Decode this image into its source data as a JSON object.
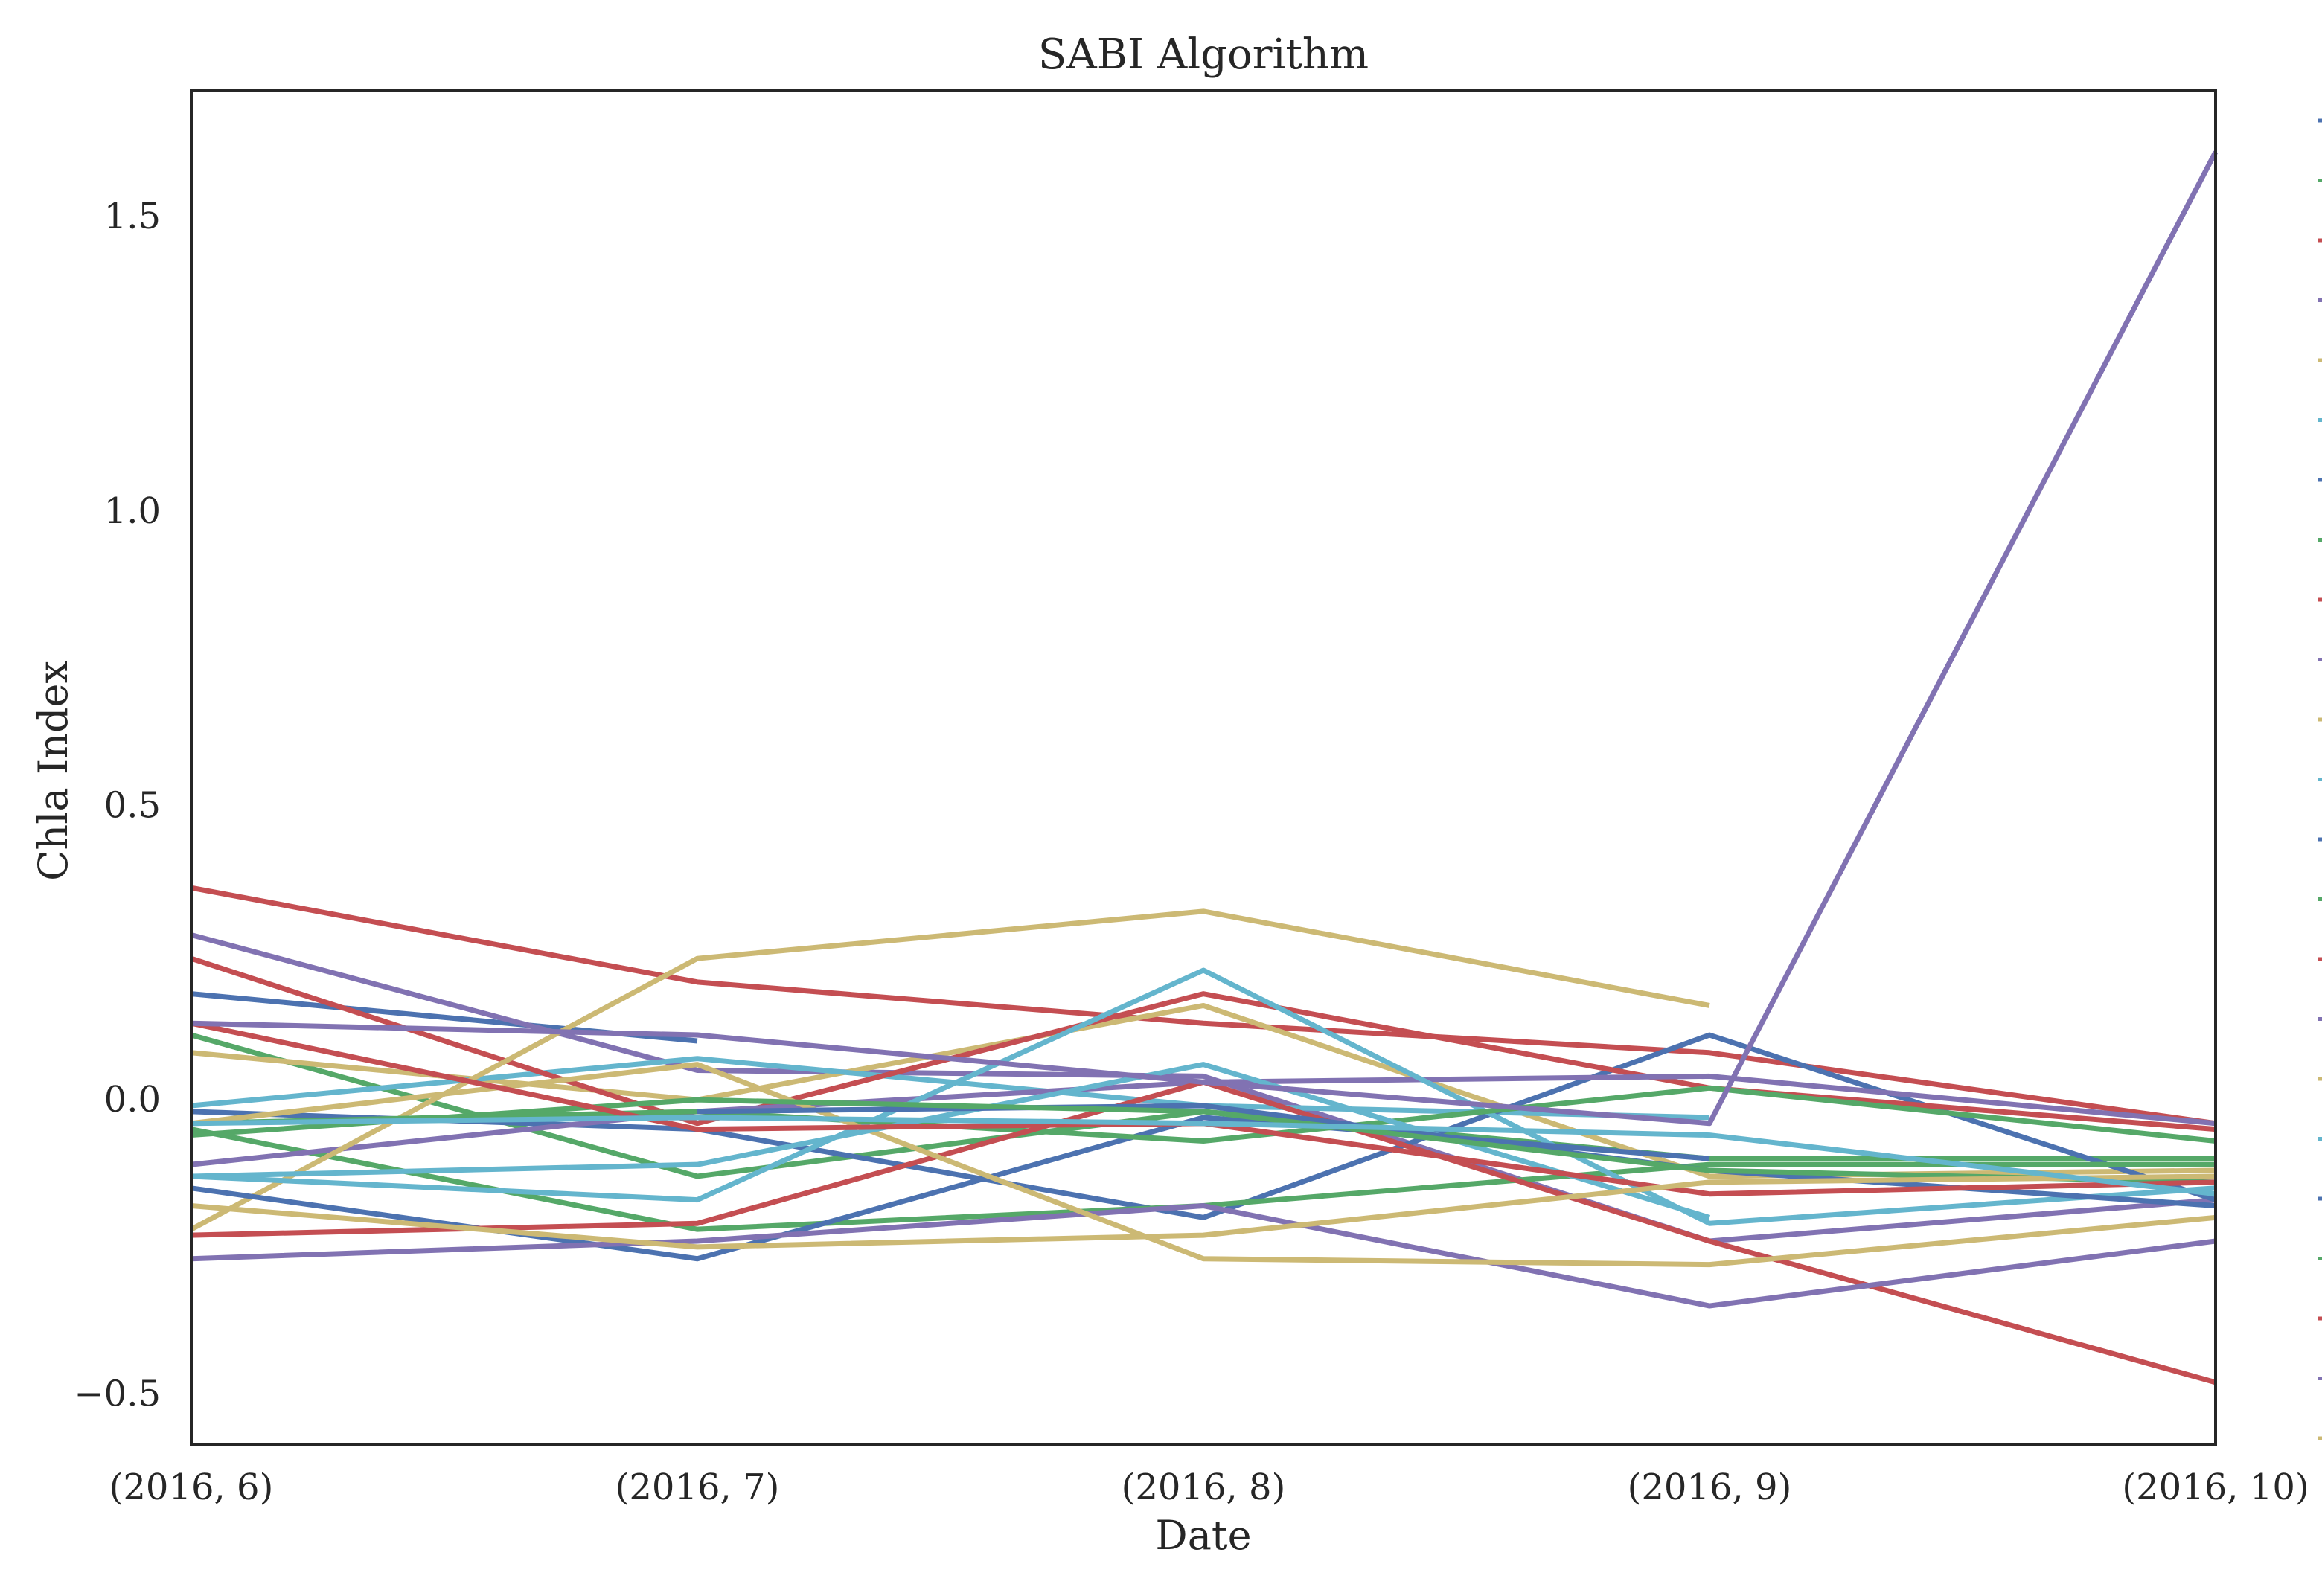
{
  "chart_data": {
    "type": "line",
    "title": "SABI Algorithm",
    "xlabel": "Date",
    "ylabel": "Chla Index",
    "categories": [
      "(2016, 6)",
      "(2016, 7)",
      "(2016, 8)",
      "(2016, 9)",
      "(2016, 10)"
    ],
    "ylim": [
      -0.585,
      1.715
    ],
    "yticks": [
      -0.5,
      0.0,
      0.5,
      1.0,
      1.5
    ],
    "ytick_labels": [
      "−0.5",
      "0.0",
      "0.5",
      "1.0",
      "1.5"
    ],
    "grid": false,
    "legend_placement": "right, outside plot (cut off)",
    "series": [
      {
        "color": "#4c72b0",
        "values": [
          0.18,
          0.1,
          null,
          null,
          null
        ]
      },
      {
        "color": "#55a868",
        "values": [
          0.11,
          -0.13,
          -0.02,
          -0.1,
          -0.1
        ]
      },
      {
        "color": "#c44e52",
        "values": [
          0.36,
          0.2,
          0.13,
          0.08,
          -0.04
        ]
      },
      {
        "color": "#8172b2",
        "values": [
          0.28,
          0.05,
          0.04,
          -0.24,
          -0.17
        ]
      },
      {
        "color": "#ccb974",
        "values": [
          0.08,
          0.0,
          0.16,
          -0.13,
          -0.12
        ]
      },
      {
        "color": "#64b5cd",
        "values": [
          -0.01,
          0.07,
          -0.01,
          -0.03,
          null
        ]
      },
      {
        "color": "#4c72b0",
        "values": [
          -0.02,
          -0.05,
          -0.2,
          0.11,
          -0.17
        ]
      },
      {
        "color": "#55a868",
        "values": [
          -0.05,
          -0.22,
          -0.18,
          -0.11,
          -0.11
        ]
      },
      {
        "color": "#c44e52",
        "values": [
          0.24,
          -0.04,
          0.18,
          0.02,
          -0.05
        ]
      },
      {
        "color": "#8172b2",
        "values": [
          -0.11,
          -0.02,
          0.03,
          0.04,
          -0.04
        ]
      },
      {
        "color": "#ccb974",
        "values": [
          -0.22,
          0.24,
          0.32,
          0.16,
          null
        ]
      },
      {
        "color": "#64b5cd",
        "values": [
          -0.13,
          -0.17,
          0.22,
          -0.21,
          -0.15
        ]
      },
      {
        "color": "#4c72b0",
        "values": [
          -0.15,
          -0.27,
          -0.03,
          -0.1,
          null
        ]
      },
      {
        "color": "#55a868",
        "values": [
          -0.04,
          -0.02,
          -0.07,
          0.02,
          -0.07
        ]
      },
      {
        "color": "#c44e52",
        "values": [
          -0.23,
          -0.21,
          0.03,
          -0.24,
          -0.48
        ]
      },
      {
        "color": "#8172b2",
        "values": [
          -0.27,
          -0.24,
          -0.18,
          -0.35,
          -0.24
        ]
      },
      {
        "color": "#ccb974",
        "values": [
          -0.04,
          0.06,
          -0.27,
          -0.28,
          -0.2
        ]
      },
      {
        "color": "#64b5cd",
        "values": [
          -0.13,
          -0.11,
          0.06,
          -0.2,
          null
        ]
      },
      {
        "color": "#4c72b0",
        "values": [
          null,
          -0.02,
          -0.01,
          -0.12,
          -0.18
        ]
      },
      {
        "color": "#55a868",
        "values": [
          -0.06,
          0.0,
          -0.02,
          -0.12,
          -0.14
        ]
      },
      {
        "color": "#c44e52",
        "values": [
          0.13,
          -0.05,
          -0.04,
          -0.16,
          -0.14
        ]
      },
      {
        "color": "#8172b2",
        "values": [
          0.13,
          0.11,
          0.03,
          -0.04,
          1.61
        ]
      },
      {
        "color": "#ccb974",
        "values": [
          -0.18,
          -0.25,
          -0.23,
          -0.14,
          -0.13
        ]
      },
      {
        "color": "#64b5cd",
        "values": [
          -0.04,
          -0.03,
          -0.04,
          -0.06,
          -0.16
        ]
      }
    ],
    "legend_marker_count": 23
  }
}
